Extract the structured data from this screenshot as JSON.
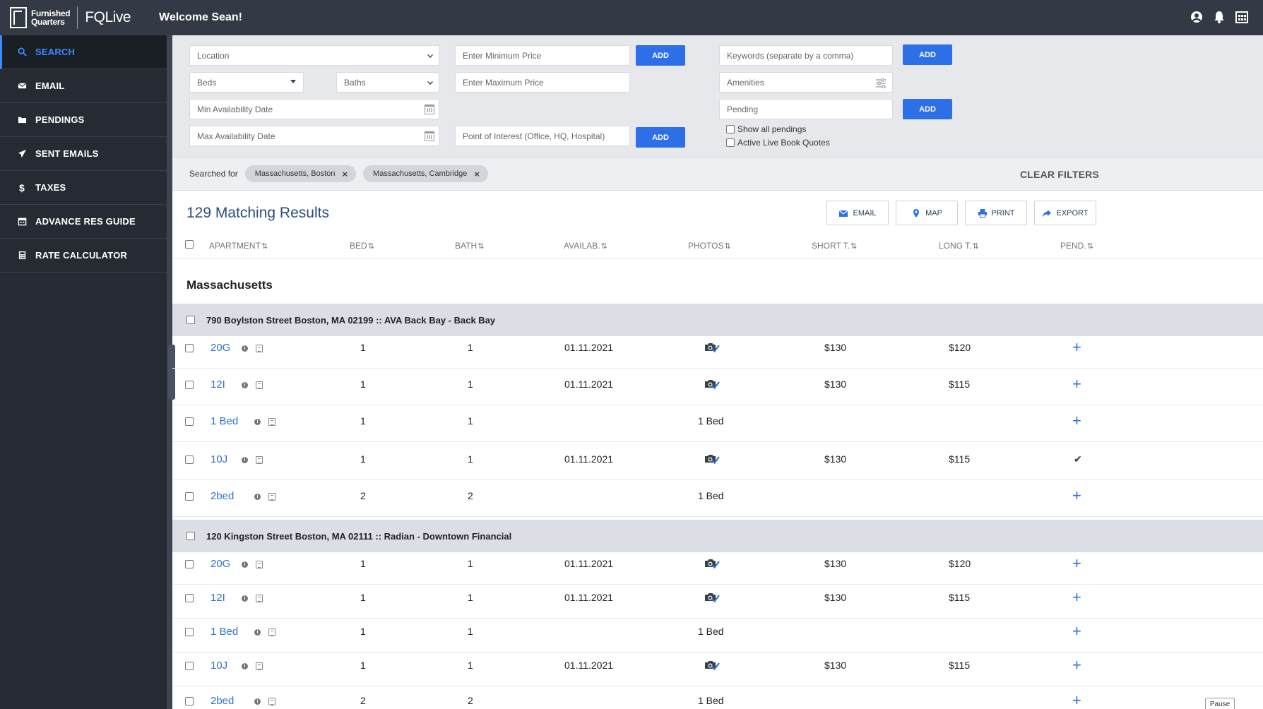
{
  "topbar": {
    "logo_line1": "Furnished",
    "logo_line2": "Quarters",
    "brand": "FQLive",
    "welcome": "Welcome Sean!"
  },
  "sidebar": {
    "items": [
      {
        "label": "SEARCH",
        "icon": "search-icon"
      },
      {
        "label": "EMAIL",
        "icon": "envelope-icon"
      },
      {
        "label": "PENDINGS",
        "icon": "folder-icon"
      },
      {
        "label": "SENT EMAILS",
        "icon": "paper-plane-icon"
      },
      {
        "label": "TAXES",
        "icon": "dollar-icon"
      },
      {
        "label": "ADVANCE RES GUIDE",
        "icon": "calendar-icon"
      },
      {
        "label": "RATE CALCULATOR",
        "icon": "calculator-icon"
      }
    ]
  },
  "filters": {
    "location": "Location",
    "beds": "Beds",
    "baths": "Baths",
    "min_avail_placeholder": "Min Availability Date",
    "max_avail_placeholder": "Max Availability Date",
    "min_price_placeholder": "Enter Minimum Price",
    "max_price_placeholder": "Enter Maximum Price",
    "poi_placeholder": "Point of Interest (Office, HQ, Hospital)",
    "keywords_placeholder": "Keywords (separate by a comma)",
    "amenities": "Amenities",
    "pending_placeholder": "Pending",
    "add_label": "ADD",
    "show_all_pendings": "Show all pendings",
    "active_live_book": "Active Live Book Quotes"
  },
  "searched": {
    "label": "Searched for",
    "chips": [
      "Massachusetts, Boston",
      "Massachusetts, Cambridge"
    ],
    "clear": "CLEAR FILTERS"
  },
  "results": {
    "title": "129 Matching Results",
    "actions": [
      "EMAIL",
      "MAP",
      "PRINT",
      "EXPORT"
    ]
  },
  "columns": [
    "APARTMENT",
    "BED",
    "BATH",
    "AVAILAB.",
    "PHOTOS",
    "SHORT T.",
    "LONG T.",
    "PEND."
  ],
  "sort_glyph": "⇅",
  "region": "Massachusetts",
  "groups": [
    {
      "title": "790 Boylston Street Boston, MA 02199 :: AVA Back Bay - Back Bay",
      "rows": [
        {
          "apt": "20G",
          "bed": "1",
          "bath": "1",
          "avail": "01.11.2021",
          "photos": "icon",
          "short": "$130",
          "long": "$120",
          "pend": "plus"
        },
        {
          "apt": "12I",
          "bed": "1",
          "bath": "1",
          "avail": "01.11.2021",
          "photos": "icon",
          "short": "$130",
          "long": "$115",
          "pend": "plus"
        },
        {
          "apt": "1 Bed",
          "bed": "1",
          "bath": "1",
          "avail": "",
          "photos": "1 Bed",
          "short": "",
          "long": "",
          "pend": "plus"
        },
        {
          "apt": "10J",
          "bed": "1",
          "bath": "1",
          "avail": "01.11.2021",
          "photos": "icon",
          "short": "$130",
          "long": "$115",
          "pend": "check"
        },
        {
          "apt": "2bed",
          "bed": "2",
          "bath": "2",
          "avail": "",
          "photos": "1 Bed",
          "short": "",
          "long": "",
          "pend": "plus"
        }
      ]
    },
    {
      "title": "120 Kingston Street Boston, MA 02111 :: Radian - Downtown Financial",
      "rows": [
        {
          "apt": "20G",
          "bed": "1",
          "bath": "1",
          "avail": "01.11.2021",
          "photos": "icon",
          "short": "$130",
          "long": "$120",
          "pend": "plus"
        },
        {
          "apt": "12I",
          "bed": "1",
          "bath": "1",
          "avail": "01.11.2021",
          "photos": "icon",
          "short": "$130",
          "long": "$115",
          "pend": "plus"
        },
        {
          "apt": "1 Bed",
          "bed": "1",
          "bath": "1",
          "avail": "",
          "photos": "1 Bed",
          "short": "",
          "long": "",
          "pend": "plus"
        },
        {
          "apt": "10J",
          "bed": "1",
          "bath": "1",
          "avail": "01.11.2021",
          "photos": "icon",
          "short": "$130",
          "long": "$115",
          "pend": "plus"
        },
        {
          "apt": "2bed",
          "bed": "2",
          "bath": "2",
          "avail": "",
          "photos": "1 Bed",
          "short": "",
          "long": "",
          "pend": "plus"
        }
      ]
    }
  ],
  "pause_label": "Pause",
  "colors": {
    "accent": "#2c6fe6",
    "topbar": "#343a45",
    "sidebar": "#252a33",
    "link": "#2d72d9"
  }
}
